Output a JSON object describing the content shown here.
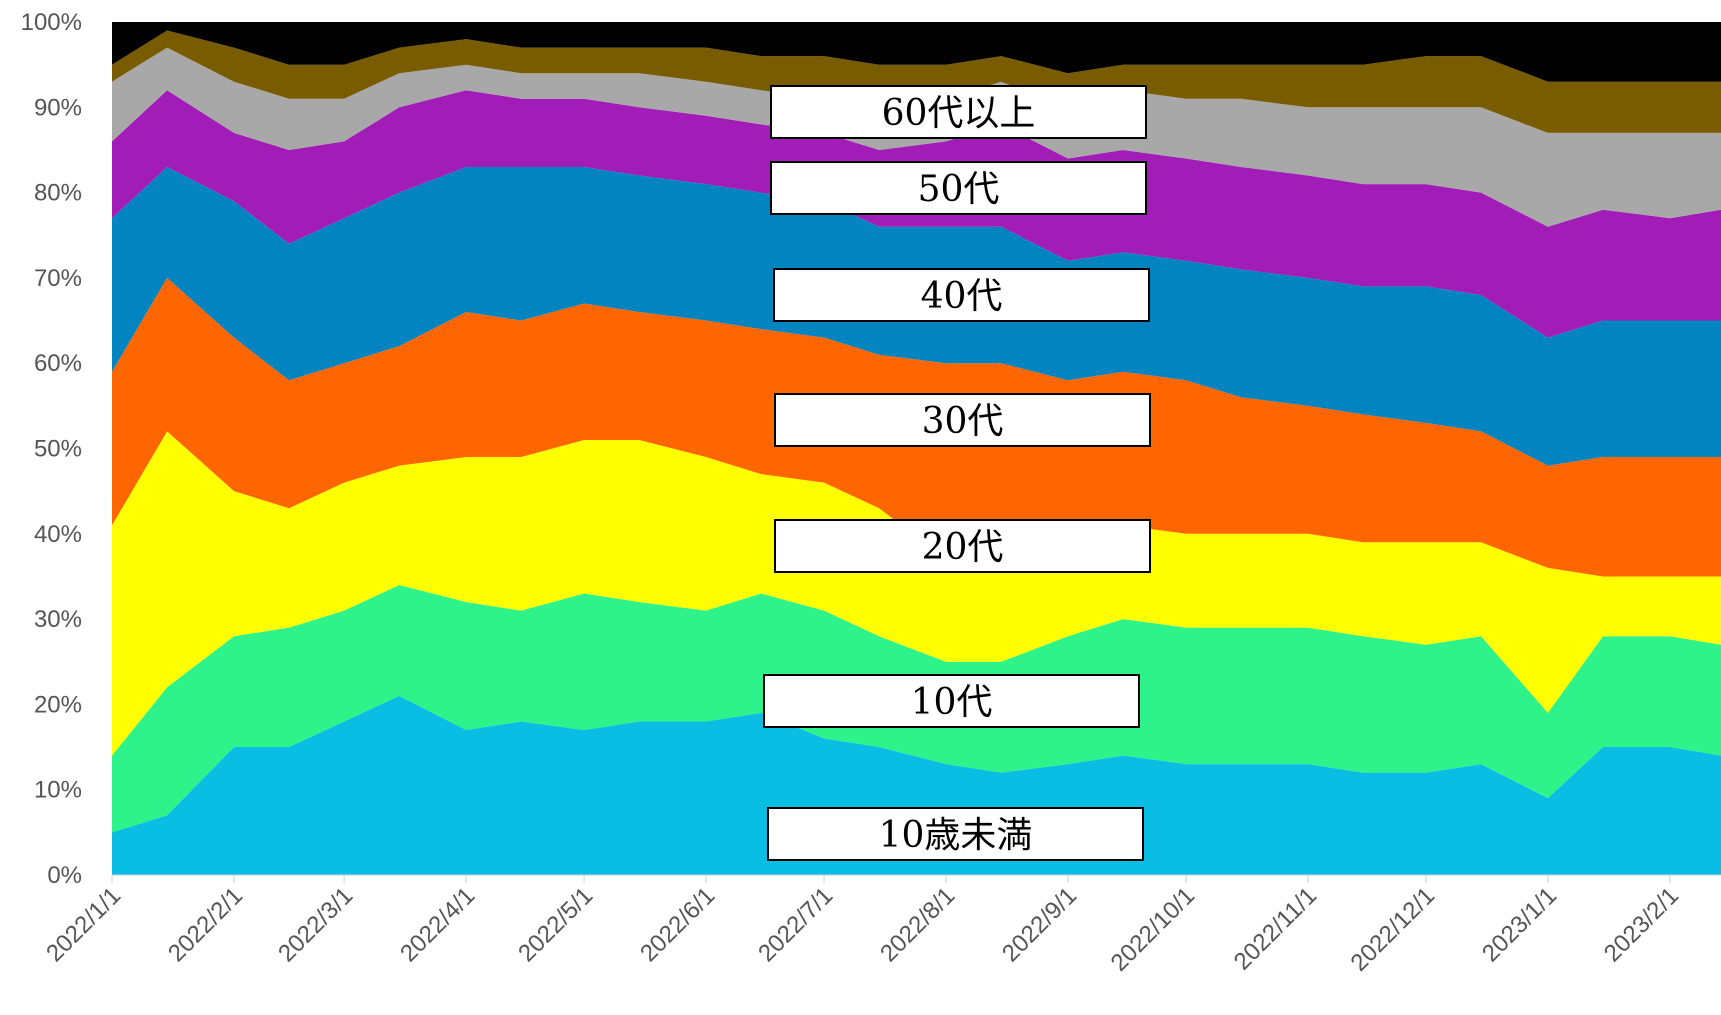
{
  "chart_data": {
    "type": "area",
    "stacked": true,
    "normalized": true,
    "title": "",
    "xlabel": "",
    "ylabel": "",
    "ylim": [
      0,
      100
    ],
    "yticks": [
      "0%",
      "10%",
      "20%",
      "30%",
      "40%",
      "50%",
      "60%",
      "70%",
      "80%",
      "90%",
      "100%"
    ],
    "x": [
      "2022/1/1",
      "2022/1/15",
      "2022/2/1",
      "2022/2/15",
      "2022/3/1",
      "2022/3/15",
      "2022/4/1",
      "2022/4/15",
      "2022/5/1",
      "2022/5/15",
      "2022/6/1",
      "2022/6/15",
      "2022/7/1",
      "2022/7/15",
      "2022/8/1",
      "2022/8/15",
      "2022/9/1",
      "2022/9/15",
      "2022/10/1",
      "2022/10/15",
      "2022/11/1",
      "2022/11/15",
      "2022/12/1",
      "2022/12/15",
      "2023/1/1",
      "2023/1/15",
      "2023/2/1",
      "2023/2/14"
    ],
    "xticks": [
      "2022/1/1",
      "2022/2/1",
      "2022/3/1",
      "2022/4/1",
      "2022/5/1",
      "2022/6/1",
      "2022/7/1",
      "2022/8/1",
      "2022/9/1",
      "2022/10/1",
      "2022/11/1",
      "2022/12/1",
      "2023/1/1",
      "2023/2/1"
    ],
    "grid": false,
    "legend": "none",
    "series": [
      {
        "name": "10歳未満",
        "color": "#0ABDE3",
        "values": [
          5,
          7,
          15,
          15,
          18,
          21,
          17,
          18,
          17,
          18,
          18,
          19,
          16,
          15,
          13,
          12,
          13,
          14,
          13,
          13,
          13,
          12,
          12,
          13,
          9,
          15,
          15,
          14
        ]
      },
      {
        "name": "10代",
        "color": "#2EF28A",
        "values": [
          9,
          15,
          13,
          14,
          13,
          13,
          15,
          13,
          16,
          14,
          13,
          14,
          15,
          13,
          12,
          13,
          15,
          16,
          16,
          16,
          16,
          16,
          15,
          15,
          10,
          13,
          13,
          13
        ]
      },
      {
        "name": "20代",
        "color": "#FFFF00",
        "values": [
          27,
          30,
          17,
          14,
          15,
          14,
          17,
          18,
          18,
          19,
          18,
          14,
          15,
          15,
          12,
          11,
          13,
          11,
          11,
          11,
          11,
          11,
          12,
          11,
          17,
          7,
          7,
          8
        ]
      },
      {
        "name": "30代",
        "color": "#FF6600",
        "values": [
          18,
          18,
          18,
          15,
          14,
          14,
          17,
          16,
          16,
          15,
          16,
          17,
          17,
          18,
          23,
          24,
          17,
          18,
          18,
          16,
          15,
          15,
          14,
          13,
          12,
          14,
          14,
          14
        ]
      },
      {
        "name": "40代",
        "color": "#0284C0",
        "values": [
          18,
          13,
          16,
          16,
          17,
          18,
          17,
          18,
          16,
          16,
          16,
          16,
          16,
          15,
          16,
          16,
          14,
          14,
          14,
          15,
          15,
          15,
          16,
          16,
          15,
          16,
          16,
          16
        ]
      },
      {
        "name": "50代",
        "color": "#A21CB8",
        "values": [
          9,
          9,
          8,
          11,
          9,
          10,
          9,
          8,
          8,
          8,
          8,
          8,
          8,
          9,
          10,
          12,
          12,
          12,
          12,
          12,
          12,
          12,
          12,
          12,
          13,
          13,
          12,
          13
        ]
      },
      {
        "name": "60代以上",
        "color": "#A8A8A8",
        "values": [
          7,
          5,
          6,
          6,
          5,
          4,
          3,
          3,
          3,
          4,
          4,
          4,
          4,
          5,
          5,
          5,
          6,
          7,
          7,
          8,
          8,
          9,
          9,
          10,
          11,
          9,
          10,
          9
        ]
      },
      {
        "name": "",
        "color": "#7A5C00",
        "values": [
          2,
          2,
          4,
          4,
          4,
          3,
          3,
          3,
          3,
          3,
          4,
          4,
          5,
          5,
          4,
          3,
          4,
          3,
          4,
          4,
          5,
          5,
          6,
          6,
          6,
          6,
          6,
          6
        ]
      },
      {
        "name": "",
        "color": "#000000",
        "values": [
          5,
          1,
          3,
          5,
          5,
          3,
          2,
          3,
          3,
          3,
          3,
          4,
          4,
          5,
          5,
          4,
          6,
          5,
          5,
          5,
          5,
          5,
          4,
          4,
          7,
          7,
          7,
          7
        ]
      }
    ],
    "band_labels": [
      "60代以上",
      "50代",
      "40代",
      "30代",
      "20代",
      "10代",
      "10歳未満"
    ]
  }
}
